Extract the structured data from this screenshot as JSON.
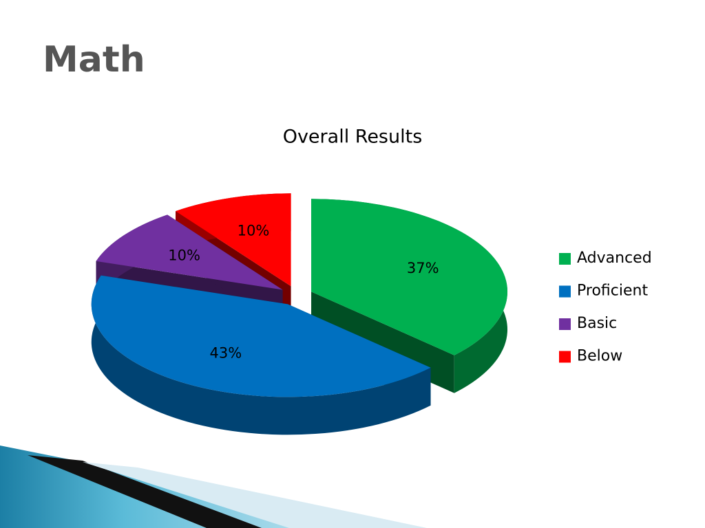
{
  "slide": {
    "title": "Math"
  },
  "chart_data": {
    "type": "pie",
    "title": "Overall Results",
    "categories": [
      "Advanced",
      "Proficient",
      "Basic",
      "Below"
    ],
    "values": [
      37,
      43,
      10,
      10
    ],
    "value_labels": [
      "37%",
      "43%",
      "10%",
      "10%"
    ],
    "colors": [
      "#00b050",
      "#0070c0",
      "#7030a0",
      "#ff0000"
    ],
    "legend": "right"
  }
}
